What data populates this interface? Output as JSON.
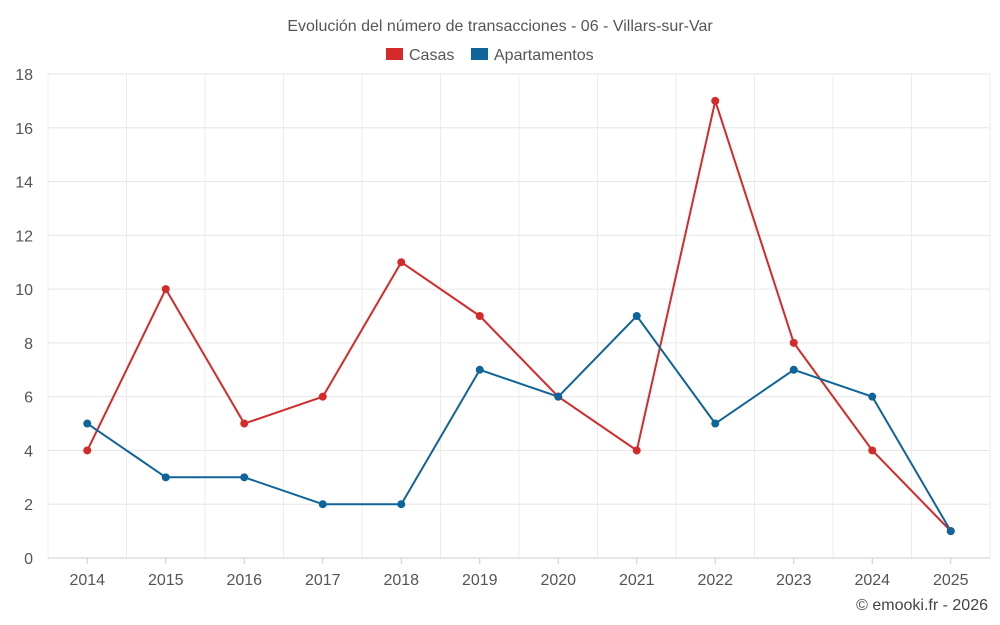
{
  "chart_data": {
    "type": "line",
    "title": "Evolución del número de transacciones - 06 - Villars-sur-Var",
    "categories": [
      "2014",
      "2015",
      "2016",
      "2017",
      "2018",
      "2019",
      "2020",
      "2021",
      "2022",
      "2023",
      "2024",
      "2025"
    ],
    "series": [
      {
        "name": "Casas",
        "color": "#d42a2a",
        "values": [
          4,
          10,
          5,
          6,
          11,
          9,
          6,
          4,
          17,
          8,
          4,
          1
        ]
      },
      {
        "name": "Apartamentos",
        "color": "#0f6499",
        "values": [
          5,
          3,
          3,
          2,
          2,
          7,
          6,
          9,
          5,
          7,
          6,
          1
        ]
      }
    ],
    "ylim": [
      0,
      18
    ],
    "yticks": [
      0,
      2,
      4,
      6,
      8,
      10,
      12,
      14,
      16,
      18
    ],
    "legend_position": "top-center",
    "grid": true
  },
  "credit": "© emooki.fr - 2026"
}
